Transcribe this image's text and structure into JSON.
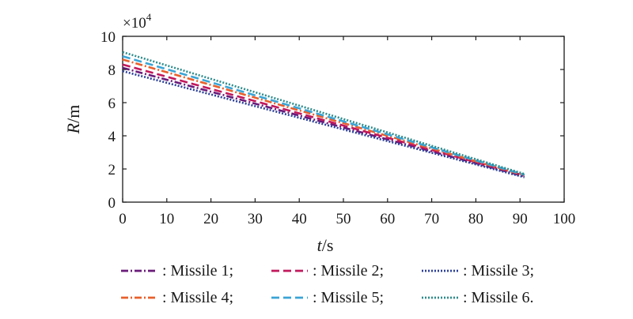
{
  "chart_data": {
    "type": "line",
    "title": "",
    "xlabel": {
      "italic": "t",
      "rest": "/s"
    },
    "ylabel": {
      "italic": "R",
      "rest": "/m"
    },
    "y_multiplier": "×10",
    "y_multiplier_exp": "4",
    "xlim": [
      0,
      100
    ],
    "ylim": [
      0,
      10
    ],
    "xticks": [
      "0",
      "10",
      "20",
      "30",
      "40",
      "50",
      "60",
      "70",
      "80",
      "90",
      "100"
    ],
    "yticks": [
      "0",
      "2",
      "4",
      "6",
      "8",
      "10"
    ],
    "grid": false,
    "legend_position": "bottom",
    "series": [
      {
        "name": ": Missile 1;",
        "color": "#6a1b7a",
        "dash": "9,3,2,3",
        "x": [
          0,
          91
        ],
        "y": [
          8.1,
          1.55
        ]
      },
      {
        "name": ": Missile 2;",
        "color": "#c2185b",
        "dash": "10,5",
        "x": [
          0,
          91
        ],
        "y": [
          8.3,
          1.6
        ]
      },
      {
        "name": ": Missile 3;",
        "color": "#2b3f99",
        "dash": "2,2",
        "x": [
          0,
          91
        ],
        "y": [
          7.9,
          1.5
        ]
      },
      {
        "name": ": Missile 4;",
        "color": "#e8602c",
        "dash": "9,3,2,3",
        "x": [
          0,
          91
        ],
        "y": [
          8.6,
          1.62
        ]
      },
      {
        "name": ": Missile 5;",
        "color": "#3aa5d6",
        "dash": "10,5",
        "x": [
          0,
          91
        ],
        "y": [
          8.8,
          1.65
        ]
      },
      {
        "name": ": Missile 6.",
        "color": "#2e8b8b",
        "dash": "2,2",
        "x": [
          0,
          91
        ],
        "y": [
          9.05,
          1.7
        ]
      }
    ]
  }
}
